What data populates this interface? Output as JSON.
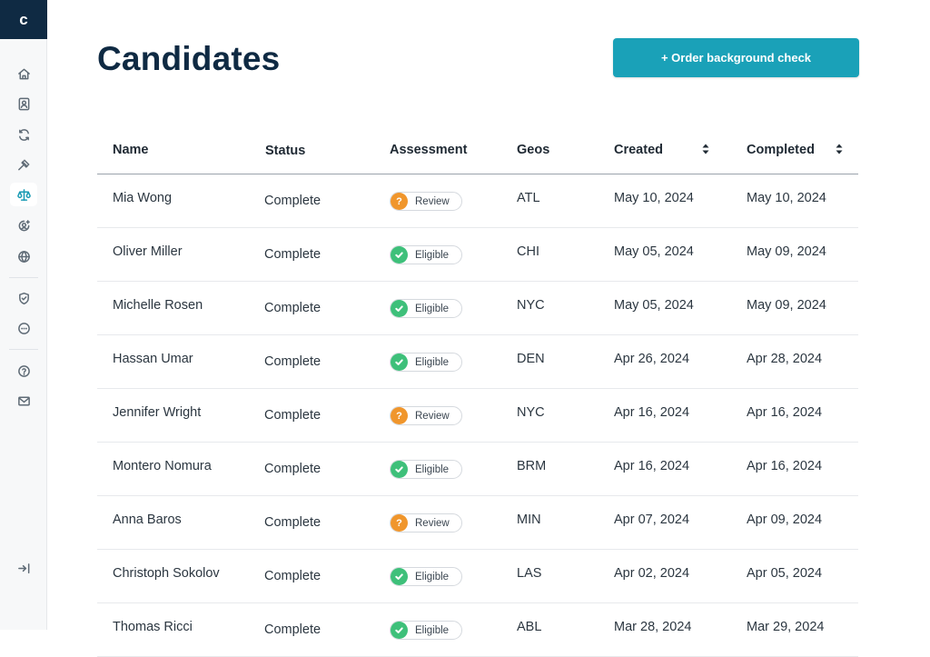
{
  "app": {
    "logo_letter": "c"
  },
  "header": {
    "title": "Candidates",
    "order_button_label": "+ Order background check"
  },
  "sidebar": {
    "items": [
      {
        "name": "home-icon"
      },
      {
        "name": "contact-card-icon"
      },
      {
        "name": "refresh-icon"
      },
      {
        "name": "gavel-icon"
      },
      {
        "name": "scales-icon",
        "active": true
      },
      {
        "name": "user-settings-icon"
      },
      {
        "name": "globe-icon"
      },
      {
        "name": "shield-check-icon"
      },
      {
        "name": "more-circle-icon"
      },
      {
        "name": "help-icon"
      },
      {
        "name": "mail-icon"
      },
      {
        "name": "collapse-sidebar-icon"
      }
    ]
  },
  "table": {
    "headers": {
      "name": "Name",
      "status": "Status",
      "assessment": "Assessment",
      "geos": "Geos",
      "created": "Created",
      "completed": "Completed"
    },
    "rows": [
      {
        "name": "Mia Wong",
        "status": "Complete",
        "assessment": "Review",
        "assessment_type": "review",
        "geo": "ATL",
        "created": "May 10, 2024",
        "completed": "May 10, 2024"
      },
      {
        "name": "Oliver Miller",
        "status": "Complete",
        "assessment": "Eligible",
        "assessment_type": "eligible",
        "geo": "CHI",
        "created": "May 05, 2024",
        "completed": "May 09, 2024"
      },
      {
        "name": "Michelle Rosen",
        "status": "Complete",
        "assessment": "Eligible",
        "assessment_type": "eligible",
        "geo": "NYC",
        "created": "May 05, 2024",
        "completed": "May 09, 2024"
      },
      {
        "name": "Hassan Umar",
        "status": "Complete",
        "assessment": "Eligible",
        "assessment_type": "eligible",
        "geo": "DEN",
        "created": "Apr  26, 2024",
        "completed": "Apr  28, 2024"
      },
      {
        "name": "Jennifer Wright",
        "status": "Complete",
        "assessment": "Review",
        "assessment_type": "review",
        "geo": "NYC",
        "created": "Apr  16, 2024",
        "completed": "Apr  16, 2024"
      },
      {
        "name": "Montero Nomura",
        "status": "Complete",
        "assessment": "Eligible",
        "assessment_type": "eligible",
        "geo": "BRM",
        "created": "Apr  16, 2024",
        "completed": "Apr  16, 2024"
      },
      {
        "name": "Anna Baros",
        "status": "Complete",
        "assessment": "Review",
        "assessment_type": "review",
        "geo": "MIN",
        "created": "Apr  07, 2024",
        "completed": "Apr  09, 2024"
      },
      {
        "name": "Christoph Sokolov",
        "status": "Complete",
        "assessment": "Eligible",
        "assessment_type": "eligible",
        "geo": "LAS",
        "created": "Apr 02, 2024",
        "completed": "Apr  05, 2024"
      },
      {
        "name": "Thomas Ricci",
        "status": "Complete",
        "assessment": "Eligible",
        "assessment_type": "eligible",
        "geo": "ABL",
        "created": "Mar 28, 2024",
        "completed": "Mar 29, 2024"
      }
    ]
  },
  "colors": {
    "brand_navy": "#0f2a43",
    "accent_teal": "#1aa1b8",
    "review_orange": "#f0962c",
    "eligible_green": "#3ec07a"
  }
}
